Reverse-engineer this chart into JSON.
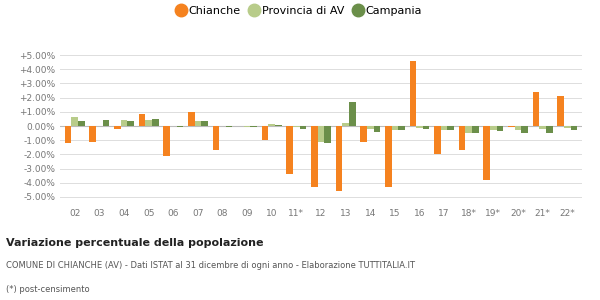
{
  "categories": [
    "02",
    "03",
    "04",
    "05",
    "06",
    "07",
    "08",
    "09",
    "10",
    "11*",
    "12",
    "13",
    "14",
    "15",
    "16",
    "17",
    "18*",
    "19*",
    "20*",
    "21*",
    "22*"
  ],
  "chianche": [
    -1.2,
    -1.1,
    -0.2,
    0.85,
    -2.1,
    1.0,
    -1.7,
    0.0,
    -1.0,
    -3.4,
    -4.3,
    -4.6,
    -1.1,
    -4.3,
    4.6,
    -2.0,
    -1.7,
    -3.8,
    -0.1,
    2.4,
    2.1
  ],
  "provincia_av": [
    0.65,
    0.0,
    0.4,
    0.45,
    0.0,
    0.35,
    0.0,
    -0.05,
    0.15,
    -0.1,
    -1.1,
    0.2,
    -0.2,
    -0.25,
    -0.15,
    -0.25,
    -0.5,
    -0.3,
    -0.3,
    -0.2,
    -0.15
  ],
  "campania": [
    0.35,
    0.45,
    0.35,
    0.5,
    -0.05,
    0.35,
    -0.05,
    -0.05,
    0.1,
    -0.2,
    -1.2,
    1.7,
    -0.4,
    -0.3,
    -0.2,
    -0.3,
    -0.5,
    -0.35,
    -0.5,
    -0.5,
    -0.3
  ],
  "chianche_color": "#f5821f",
  "provincia_color": "#b8cc8a",
  "campania_color": "#6b8f4a",
  "bg_color": "#ffffff",
  "grid_color": "#dddddd",
  "ylim": [
    -5.5,
    5.5
  ],
  "yticks": [
    -5.0,
    -4.0,
    -3.0,
    -2.0,
    -1.0,
    0.0,
    1.0,
    2.0,
    3.0,
    4.0,
    5.0
  ],
  "ytick_labels": [
    "-5.00%",
    "-4.00%",
    "-3.00%",
    "-2.00%",
    "-1.00%",
    "0.00%",
    "+1.00%",
    "+2.00%",
    "+3.00%",
    "+4.00%",
    "+5.00%"
  ],
  "title_bold": "Variazione percentuale della popolazione",
  "subtitle": "COMUNE DI CHIANCHE (AV) - Dati ISTAT al 31 dicembre di ogni anno - Elaborazione TUTTITALIA.IT",
  "footnote": "(*) post-censimento",
  "legend_labels": [
    "Chianche",
    "Provincia di AV",
    "Campania"
  ]
}
